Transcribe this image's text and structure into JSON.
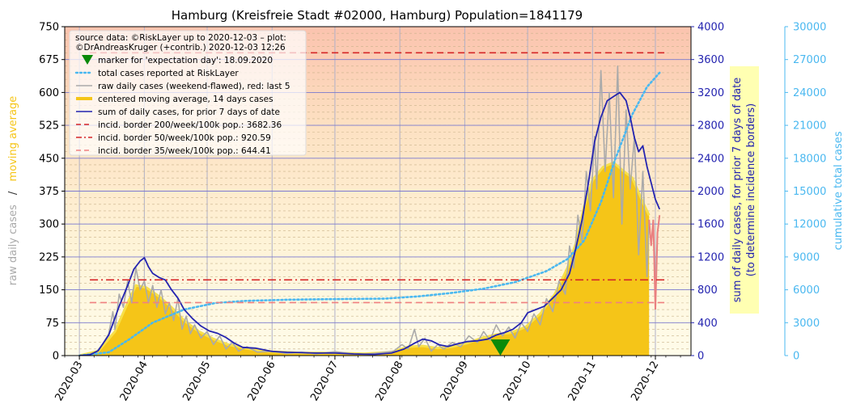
{
  "chart_data": {
    "type": "line",
    "title": "Hamburg (Kreisfreie Stadt #02000, Hamburg) Population=1841179",
    "left_axis": {
      "label_parts": [
        {
          "text": "raw daily cases",
          "color": "#aaaaaa"
        },
        {
          "text": "/",
          "color": "#333333"
        },
        {
          "text": "moving average",
          "color": "#f5c518"
        }
      ],
      "ylim": [
        0,
        750
      ],
      "ticks": [
        "0",
        "75",
        "150",
        "225",
        "300",
        "375",
        "450",
        "525",
        "600",
        "675",
        "750"
      ]
    },
    "right_axis": {
      "label_lines": [
        "sum of daily cases, for prior 7 days of date",
        "(to determine incidence borders)"
      ],
      "color": "#2424b0",
      "ylim": [
        0,
        4000
      ],
      "ticks": [
        "0",
        "400",
        "800",
        "1200",
        "1600",
        "2000",
        "2400",
        "2800",
        "3200",
        "3600",
        "4000"
      ]
    },
    "cumulative_axis": {
      "label": "cumulative total cases",
      "color": "#4ab8f0",
      "ylim": [
        0,
        30000
      ],
      "ticks": [
        "0",
        "3000",
        "6000",
        "9000",
        "12000",
        "15000",
        "18000",
        "21000",
        "24000",
        "27000",
        "30000"
      ]
    },
    "x_axis": {
      "ticks": [
        "2020-03",
        "2020-04",
        "2020-05",
        "2020-06",
        "2020-07",
        "2020-08",
        "2020-09",
        "2020-10",
        "2020-11",
        "2020-12"
      ],
      "range": [
        "2020-02-23",
        "2020-12-18"
      ]
    },
    "legend": {
      "placement": "top-left",
      "source_lines": [
        "source data: ©RiskLayer up to 2020-12-03 – plot:",
        "©DrAndreasKruger (+contrib.) 2020-12-03 12:26"
      ],
      "entries": [
        {
          "label": "marker for 'expectation day': 18.09.2020",
          "kind": "marker",
          "color": "#0a8a0a"
        },
        {
          "label": "total cases reported at RiskLayer",
          "kind": "dotted",
          "color": "#4ab8f0"
        },
        {
          "label": "raw daily cases (weekend-flawed), red: last 5",
          "kind": "line",
          "color": "#aaaaaa"
        },
        {
          "label": "centered moving average, 14 days cases",
          "kind": "thick",
          "color": "#f5c518"
        },
        {
          "label": "sum of daily cases, for prior 7 days of date",
          "kind": "line",
          "color": "#2424b0"
        },
        {
          "label": "incid. border 200/week/100k pop.: 3682.36",
          "kind": "dashed",
          "color": "#d62728"
        },
        {
          "label": "incid. border 50/week/100k pop.: 920.59",
          "kind": "dashdot",
          "color": "#d62728"
        },
        {
          "label": "incid. border 35/week/100k pop.: 644.41",
          "kind": "dashed",
          "color": "#f08080"
        }
      ]
    },
    "incidence_borders": [
      {
        "value": 3682.36,
        "start": "2020-03-06",
        "end": "2020-12-07",
        "color": "#d62728",
        "style": "dashed"
      },
      {
        "value": 920.59,
        "start": "2020-03-06",
        "end": "2020-12-07",
        "color": "#d62728",
        "style": "dashdot"
      },
      {
        "value": 644.41,
        "start": "2020-03-06",
        "end": "2020-12-07",
        "color": "#f08080",
        "style": "dashed"
      }
    ],
    "expectation_marker": {
      "date": "2020-09-18",
      "value": 0,
      "color": "#0a8a0a"
    },
    "raw_last5_start": "2020-11-28",
    "series": [
      {
        "name": "centered moving average, 14 days cases",
        "axis": "left",
        "color": "#f5c518",
        "points": [
          [
            "2020-03-01",
            0
          ],
          [
            "2020-03-10",
            10
          ],
          [
            "2020-03-18",
            55
          ],
          [
            "2020-03-24",
            120
          ],
          [
            "2020-03-28",
            160
          ],
          [
            "2020-04-02",
            155
          ],
          [
            "2020-04-08",
            135
          ],
          [
            "2020-04-14",
            110
          ],
          [
            "2020-04-20",
            80
          ],
          [
            "2020-04-27",
            55
          ],
          [
            "2020-05-04",
            38
          ],
          [
            "2020-05-11",
            25
          ],
          [
            "2020-05-18",
            18
          ],
          [
            "2020-05-25",
            12
          ],
          [
            "2020-06-01",
            9
          ],
          [
            "2020-06-15",
            6
          ],
          [
            "2020-07-01",
            6
          ],
          [
            "2020-07-15",
            4
          ],
          [
            "2020-07-28",
            8
          ],
          [
            "2020-08-05",
            20
          ],
          [
            "2020-08-12",
            22
          ],
          [
            "2020-08-19",
            17
          ],
          [
            "2020-08-26",
            20
          ],
          [
            "2020-09-02",
            28
          ],
          [
            "2020-09-09",
            40
          ],
          [
            "2020-09-16",
            48
          ],
          [
            "2020-09-23",
            52
          ],
          [
            "2020-09-30",
            65
          ],
          [
            "2020-10-07",
            95
          ],
          [
            "2020-10-14",
            140
          ],
          [
            "2020-10-20",
            200
          ],
          [
            "2020-10-24",
            255
          ],
          [
            "2020-10-28",
            340
          ],
          [
            "2020-11-01",
            400
          ],
          [
            "2020-11-06",
            430
          ],
          [
            "2020-11-11",
            440
          ],
          [
            "2020-11-16",
            420
          ],
          [
            "2020-11-20",
            405
          ],
          [
            "2020-11-25",
            350
          ],
          [
            "2020-11-28",
            320
          ]
        ]
      },
      {
        "name": "raw daily cases (weekend-flawed)",
        "axis": "left",
        "color": "#aaaaaa",
        "points": [
          [
            "2020-03-01",
            0
          ],
          [
            "2020-03-05",
            2
          ],
          [
            "2020-03-09",
            8
          ],
          [
            "2020-03-12",
            25
          ],
          [
            "2020-03-15",
            50
          ],
          [
            "2020-03-17",
            100
          ],
          [
            "2020-03-18",
            60
          ],
          [
            "2020-03-20",
            140
          ],
          [
            "2020-03-22",
            110
          ],
          [
            "2020-03-24",
            170
          ],
          [
            "2020-03-26",
            120
          ],
          [
            "2020-03-28",
            200
          ],
          [
            "2020-03-30",
            150
          ],
          [
            "2020-04-01",
            170
          ],
          [
            "2020-04-03",
            120
          ],
          [
            "2020-04-05",
            160
          ],
          [
            "2020-04-07",
            110
          ],
          [
            "2020-04-09",
            150
          ],
          [
            "2020-04-11",
            95
          ],
          [
            "2020-04-13",
            120
          ],
          [
            "2020-04-15",
            80
          ],
          [
            "2020-04-17",
            130
          ],
          [
            "2020-04-19",
            60
          ],
          [
            "2020-04-21",
            90
          ],
          [
            "2020-04-23",
            50
          ],
          [
            "2020-04-25",
            70
          ],
          [
            "2020-04-28",
            40
          ],
          [
            "2020-05-01",
            55
          ],
          [
            "2020-05-04",
            25
          ],
          [
            "2020-05-07",
            45
          ],
          [
            "2020-05-10",
            15
          ],
          [
            "2020-05-13",
            30
          ],
          [
            "2020-05-16",
            10
          ],
          [
            "2020-05-20",
            20
          ],
          [
            "2020-05-25",
            8
          ],
          [
            "2020-06-01",
            10
          ],
          [
            "2020-06-08",
            5
          ],
          [
            "2020-06-15",
            8
          ],
          [
            "2020-06-22",
            4
          ],
          [
            "2020-07-01",
            9
          ],
          [
            "2020-07-08",
            5
          ],
          [
            "2020-07-15",
            3
          ],
          [
            "2020-07-22",
            6
          ],
          [
            "2020-07-29",
            10
          ],
          [
            "2020-08-02",
            25
          ],
          [
            "2020-08-05",
            15
          ],
          [
            "2020-08-08",
            60
          ],
          [
            "2020-08-10",
            20
          ],
          [
            "2020-08-13",
            40
          ],
          [
            "2020-08-16",
            10
          ],
          [
            "2020-08-19",
            25
          ],
          [
            "2020-08-22",
            15
          ],
          [
            "2020-08-26",
            30
          ],
          [
            "2020-08-30",
            20
          ],
          [
            "2020-09-03",
            45
          ],
          [
            "2020-09-07",
            30
          ],
          [
            "2020-09-10",
            55
          ],
          [
            "2020-09-13",
            35
          ],
          [
            "2020-09-16",
            70
          ],
          [
            "2020-09-19",
            45
          ],
          [
            "2020-09-22",
            65
          ],
          [
            "2020-09-25",
            40
          ],
          [
            "2020-09-28",
            75
          ],
          [
            "2020-10-01",
            55
          ],
          [
            "2020-10-04",
            95
          ],
          [
            "2020-10-07",
            70
          ],
          [
            "2020-10-10",
            130
          ],
          [
            "2020-10-13",
            100
          ],
          [
            "2020-10-16",
            170
          ],
          [
            "2020-10-19",
            140
          ],
          [
            "2020-10-21",
            250
          ],
          [
            "2020-10-23",
            200
          ],
          [
            "2020-10-25",
            320
          ],
          [
            "2020-10-27",
            260
          ],
          [
            "2020-10-29",
            420
          ],
          [
            "2020-10-31",
            330
          ],
          [
            "2020-11-02",
            500
          ],
          [
            "2020-11-03",
            380
          ],
          [
            "2020-11-05",
            650
          ],
          [
            "2020-11-07",
            420
          ],
          [
            "2020-11-09",
            600
          ],
          [
            "2020-11-11",
            360
          ],
          [
            "2020-11-13",
            660
          ],
          [
            "2020-11-15",
            300
          ],
          [
            "2020-11-17",
            560
          ],
          [
            "2020-11-19",
            380
          ],
          [
            "2020-11-21",
            500
          ],
          [
            "2020-11-23",
            230
          ],
          [
            "2020-11-25",
            420
          ],
          [
            "2020-11-27",
            180
          ],
          [
            "2020-11-28",
            310
          ]
        ]
      },
      {
        "name": "raw daily cases, last 5",
        "axis": "left",
        "color": "#e98080",
        "points": [
          [
            "2020-11-28",
            310
          ],
          [
            "2020-11-29",
            250
          ],
          [
            "2020-11-30",
            310
          ],
          [
            "2020-12-01",
            105
          ],
          [
            "2020-12-02",
            280
          ],
          [
            "2020-12-03",
            320
          ]
        ]
      },
      {
        "name": "sum of daily cases, for prior 7 days of date",
        "axis": "right",
        "color": "#2424b0",
        "points": [
          [
            "2020-03-01",
            0
          ],
          [
            "2020-03-06",
            10
          ],
          [
            "2020-03-10",
            60
          ],
          [
            "2020-03-15",
            250
          ],
          [
            "2020-03-20",
            600
          ],
          [
            "2020-03-24",
            850
          ],
          [
            "2020-03-27",
            1050
          ],
          [
            "2020-03-30",
            1150
          ],
          [
            "2020-04-01",
            1190
          ],
          [
            "2020-04-03",
            1080
          ],
          [
            "2020-04-05",
            1000
          ],
          [
            "2020-04-08",
            950
          ],
          [
            "2020-04-11",
            920
          ],
          [
            "2020-04-14",
            800
          ],
          [
            "2020-04-17",
            700
          ],
          [
            "2020-04-20",
            560
          ],
          [
            "2020-04-24",
            450
          ],
          [
            "2020-04-28",
            360
          ],
          [
            "2020-05-02",
            300
          ],
          [
            "2020-05-06",
            270
          ],
          [
            "2020-05-10",
            220
          ],
          [
            "2020-05-14",
            150
          ],
          [
            "2020-05-18",
            100
          ],
          [
            "2020-05-24",
            90
          ],
          [
            "2020-06-01",
            50
          ],
          [
            "2020-06-08",
            40
          ],
          [
            "2020-06-15",
            35
          ],
          [
            "2020-06-22",
            30
          ],
          [
            "2020-07-01",
            30
          ],
          [
            "2020-07-10",
            20
          ],
          [
            "2020-07-20",
            15
          ],
          [
            "2020-07-28",
            30
          ],
          [
            "2020-08-03",
            80
          ],
          [
            "2020-08-08",
            150
          ],
          [
            "2020-08-12",
            200
          ],
          [
            "2020-08-16",
            180
          ],
          [
            "2020-08-20",
            130
          ],
          [
            "2020-08-24",
            110
          ],
          [
            "2020-08-28",
            140
          ],
          [
            "2020-09-02",
            170
          ],
          [
            "2020-09-07",
            180
          ],
          [
            "2020-09-12",
            200
          ],
          [
            "2020-09-16",
            250
          ],
          [
            "2020-09-20",
            280
          ],
          [
            "2020-09-24",
            320
          ],
          [
            "2020-09-28",
            400
          ],
          [
            "2020-10-01",
            520
          ],
          [
            "2020-10-05",
            560
          ],
          [
            "2020-10-09",
            600
          ],
          [
            "2020-10-13",
            700
          ],
          [
            "2020-10-17",
            800
          ],
          [
            "2020-10-21",
            1000
          ],
          [
            "2020-10-24",
            1300
          ],
          [
            "2020-10-27",
            1650
          ],
          [
            "2020-10-30",
            2100
          ],
          [
            "2020-11-02",
            2600
          ],
          [
            "2020-11-05",
            2900
          ],
          [
            "2020-11-08",
            3100
          ],
          [
            "2020-11-11",
            3150
          ],
          [
            "2020-11-14",
            3200
          ],
          [
            "2020-11-17",
            3100
          ],
          [
            "2020-11-19",
            2900
          ],
          [
            "2020-11-21",
            2650
          ],
          [
            "2020-11-23",
            2480
          ],
          [
            "2020-11-25",
            2550
          ],
          [
            "2020-11-27",
            2300
          ],
          [
            "2020-11-29",
            2100
          ],
          [
            "2020-12-01",
            1900
          ],
          [
            "2020-12-03",
            1780
          ]
        ]
      },
      {
        "name": "total cases reported at RiskLayer",
        "axis": "cumulative",
        "color": "#4ab8f0",
        "points": [
          [
            "2020-03-01",
            0
          ],
          [
            "2020-03-15",
            300
          ],
          [
            "2020-03-25",
            1500
          ],
          [
            "2020-04-05",
            3000
          ],
          [
            "2020-04-20",
            4200
          ],
          [
            "2020-05-05",
            4800
          ],
          [
            "2020-05-20",
            5000
          ],
          [
            "2020-06-10",
            5100
          ],
          [
            "2020-07-01",
            5150
          ],
          [
            "2020-07-25",
            5200
          ],
          [
            "2020-08-10",
            5400
          ],
          [
            "2020-08-25",
            5700
          ],
          [
            "2020-09-10",
            6100
          ],
          [
            "2020-09-25",
            6700
          ],
          [
            "2020-10-10",
            7700
          ],
          [
            "2020-10-20",
            8800
          ],
          [
            "2020-10-28",
            10500
          ],
          [
            "2020-11-05",
            14000
          ],
          [
            "2020-11-12",
            18000
          ],
          [
            "2020-11-20",
            22000
          ],
          [
            "2020-11-27",
            24500
          ],
          [
            "2020-12-03",
            25800
          ]
        ]
      }
    ]
  }
}
